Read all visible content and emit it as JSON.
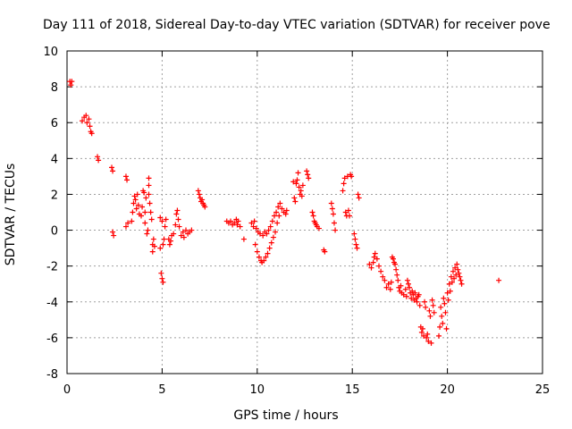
{
  "chart_data": {
    "type": "scatter",
    "title": "Day 111 of 2018, Sidereal Day-to-day VTEC variation (SDTVAR) for receiver pove",
    "xlabel": "GPS time / hours",
    "ylabel": "SDTVAR / TECUs",
    "xlim": [
      0,
      25
    ],
    "ylim": [
      -8,
      10
    ],
    "xticks": [
      0,
      5,
      10,
      15,
      20,
      25
    ],
    "yticks": [
      -8,
      -6,
      -4,
      -2,
      0,
      2,
      4,
      6,
      8,
      10
    ],
    "grid": true,
    "marker": "+",
    "color": "#ff0000",
    "series": [
      {
        "name": "SDTVAR",
        "points": [
          [
            0.15,
            8.3
          ],
          [
            0.2,
            8.1
          ],
          [
            0.25,
            8.3
          ],
          [
            0.8,
            6.1
          ],
          [
            0.9,
            6.3
          ],
          [
            1.0,
            6.4
          ],
          [
            1.05,
            6.0
          ],
          [
            1.15,
            6.2
          ],
          [
            1.2,
            5.8
          ],
          [
            1.25,
            5.5
          ],
          [
            1.3,
            5.4
          ],
          [
            1.6,
            4.1
          ],
          [
            1.65,
            3.9
          ],
          [
            2.35,
            3.5
          ],
          [
            2.4,
            3.3
          ],
          [
            2.4,
            -0.1
          ],
          [
            2.45,
            -0.3
          ],
          [
            3.1,
            3.0
          ],
          [
            3.15,
            2.8
          ],
          [
            3.1,
            0.2
          ],
          [
            3.2,
            0.4
          ],
          [
            3.4,
            0.5
          ],
          [
            3.45,
            1.0
          ],
          [
            3.5,
            1.5
          ],
          [
            3.55,
            1.9
          ],
          [
            3.6,
            1.7
          ],
          [
            3.65,
            1.2
          ],
          [
            3.7,
            2.0
          ],
          [
            3.75,
            1.4
          ],
          [
            3.8,
            0.9
          ],
          [
            3.9,
            0.8
          ],
          [
            3.95,
            1.3
          ],
          [
            4.0,
            2.2
          ],
          [
            4.05,
            2.1
          ],
          [
            4.1,
            1.0
          ],
          [
            4.1,
            0.4
          ],
          [
            4.15,
            1.8
          ],
          [
            4.2,
            -0.2
          ],
          [
            4.25,
            0.0
          ],
          [
            4.3,
            2.9
          ],
          [
            4.3,
            2.5
          ],
          [
            4.3,
            2.0
          ],
          [
            4.35,
            1.5
          ],
          [
            4.4,
            1.0
          ],
          [
            4.45,
            0.6
          ],
          [
            4.5,
            -0.8
          ],
          [
            4.5,
            -1.2
          ],
          [
            4.55,
            -0.5
          ],
          [
            4.6,
            -0.9
          ],
          [
            4.9,
            -1.0
          ],
          [
            4.95,
            -2.4
          ],
          [
            5.0,
            -2.7
          ],
          [
            5.05,
            -2.9
          ],
          [
            4.9,
            0.7
          ],
          [
            5.0,
            0.5
          ],
          [
            5.05,
            -0.8
          ],
          [
            5.1,
            -0.5
          ],
          [
            5.15,
            0.2
          ],
          [
            5.2,
            0.6
          ],
          [
            5.35,
            -0.5
          ],
          [
            5.4,
            -0.8
          ],
          [
            5.45,
            -0.6
          ],
          [
            5.5,
            -0.3
          ],
          [
            5.6,
            -0.2
          ],
          [
            5.7,
            0.3
          ],
          [
            5.75,
            0.9
          ],
          [
            5.8,
            1.1
          ],
          [
            5.85,
            0.6
          ],
          [
            5.9,
            0.2
          ],
          [
            6.0,
            -0.3
          ],
          [
            6.1,
            -0.1
          ],
          [
            6.15,
            -0.4
          ],
          [
            6.25,
            0.0
          ],
          [
            6.35,
            -0.2
          ],
          [
            6.45,
            -0.1
          ],
          [
            6.55,
            0.0
          ],
          [
            6.9,
            2.2
          ],
          [
            6.95,
            2.0
          ],
          [
            7.0,
            1.8
          ],
          [
            7.05,
            1.6
          ],
          [
            7.1,
            1.7
          ],
          [
            7.15,
            1.5
          ],
          [
            7.2,
            1.4
          ],
          [
            7.25,
            1.3
          ],
          [
            8.4,
            0.5
          ],
          [
            8.5,
            0.4
          ],
          [
            8.6,
            0.5
          ],
          [
            8.7,
            0.3
          ],
          [
            8.8,
            0.4
          ],
          [
            8.9,
            0.6
          ],
          [
            8.95,
            0.3
          ],
          [
            9.0,
            0.5
          ],
          [
            9.1,
            0.2
          ],
          [
            9.3,
            -0.5
          ],
          [
            9.7,
            0.4
          ],
          [
            9.8,
            0.2
          ],
          [
            9.85,
            0.5
          ],
          [
            9.9,
            -0.8
          ],
          [
            9.95,
            0.1
          ],
          [
            10.0,
            -1.2
          ],
          [
            10.05,
            -0.1
          ],
          [
            10.1,
            -1.5
          ],
          [
            10.15,
            -0.2
          ],
          [
            10.2,
            -1.7
          ],
          [
            10.25,
            -1.8
          ],
          [
            10.3,
            -0.3
          ],
          [
            10.35,
            -1.7
          ],
          [
            10.4,
            -0.1
          ],
          [
            10.45,
            -1.5
          ],
          [
            10.5,
            -0.2
          ],
          [
            10.55,
            -1.3
          ],
          [
            10.6,
            0.0
          ],
          [
            10.65,
            -1.0
          ],
          [
            10.7,
            0.2
          ],
          [
            10.75,
            -0.7
          ],
          [
            10.8,
            0.5
          ],
          [
            10.85,
            -0.4
          ],
          [
            10.9,
            0.8
          ],
          [
            10.95,
            -0.1
          ],
          [
            11.0,
            1.0
          ],
          [
            11.05,
            0.4
          ],
          [
            11.1,
            1.3
          ],
          [
            11.15,
            0.8
          ],
          [
            11.2,
            1.5
          ],
          [
            11.3,
            1.2
          ],
          [
            11.4,
            1.0
          ],
          [
            11.5,
            0.9
          ],
          [
            11.55,
            1.1
          ],
          [
            11.9,
            2.7
          ],
          [
            11.95,
            1.8
          ],
          [
            12.0,
            1.6
          ],
          [
            12.05,
            2.6
          ],
          [
            12.1,
            2.8
          ],
          [
            12.15,
            3.2
          ],
          [
            12.2,
            2.4
          ],
          [
            12.25,
            2.0
          ],
          [
            12.3,
            2.2
          ],
          [
            12.35,
            1.9
          ],
          [
            12.4,
            2.5
          ],
          [
            12.6,
            3.3
          ],
          [
            12.65,
            3.1
          ],
          [
            12.7,
            2.9
          ],
          [
            12.9,
            1.0
          ],
          [
            12.95,
            0.8
          ],
          [
            13.0,
            0.5
          ],
          [
            13.05,
            0.4
          ],
          [
            13.1,
            0.3
          ],
          [
            13.15,
            0.2
          ],
          [
            13.25,
            0.1
          ],
          [
            13.5,
            -1.1
          ],
          [
            13.55,
            -1.2
          ],
          [
            13.9,
            1.5
          ],
          [
            13.95,
            1.2
          ],
          [
            14.0,
            0.9
          ],
          [
            14.05,
            0.4
          ],
          [
            14.1,
            0.0
          ],
          [
            14.5,
            2.2
          ],
          [
            14.55,
            2.6
          ],
          [
            14.6,
            2.9
          ],
          [
            14.65,
            1.0
          ],
          [
            14.7,
            0.8
          ],
          [
            14.75,
            3.0
          ],
          [
            14.8,
            1.1
          ],
          [
            14.85,
            0.8
          ],
          [
            14.9,
            3.1
          ],
          [
            14.95,
            3.0
          ],
          [
            15.1,
            -0.2
          ],
          [
            15.15,
            -0.5
          ],
          [
            15.2,
            -0.8
          ],
          [
            15.25,
            -1.0
          ],
          [
            15.3,
            2.0
          ],
          [
            15.35,
            1.8
          ],
          [
            15.9,
            -1.9
          ],
          [
            16.0,
            -2.1
          ],
          [
            16.1,
            -1.8
          ],
          [
            16.15,
            -1.5
          ],
          [
            16.2,
            -1.3
          ],
          [
            16.3,
            -1.6
          ],
          [
            16.4,
            -2.0
          ],
          [
            16.5,
            -2.3
          ],
          [
            16.6,
            -2.6
          ],
          [
            16.7,
            -2.8
          ],
          [
            16.8,
            -3.2
          ],
          [
            16.9,
            -3.0
          ],
          [
            17.0,
            -3.3
          ],
          [
            17.05,
            -2.9
          ],
          [
            17.1,
            -1.5
          ],
          [
            17.15,
            -1.6
          ],
          [
            17.2,
            -1.8
          ],
          [
            17.25,
            -1.9
          ],
          [
            17.3,
            -2.2
          ],
          [
            17.35,
            -2.5
          ],
          [
            17.4,
            -2.8
          ],
          [
            17.45,
            -3.2
          ],
          [
            17.5,
            -3.4
          ],
          [
            17.55,
            -3.1
          ],
          [
            17.6,
            -3.5
          ],
          [
            17.7,
            -3.6
          ],
          [
            17.8,
            -3.3
          ],
          [
            17.85,
            -3.7
          ],
          [
            17.9,
            -2.8
          ],
          [
            17.95,
            -3.0
          ],
          [
            18.0,
            -3.2
          ],
          [
            18.05,
            -3.5
          ],
          [
            18.1,
            -3.8
          ],
          [
            18.15,
            -3.4
          ],
          [
            18.2,
            -3.6
          ],
          [
            18.25,
            -3.9
          ],
          [
            18.3,
            -3.5
          ],
          [
            18.35,
            -3.8
          ],
          [
            18.4,
            -4.0
          ],
          [
            18.45,
            -3.7
          ],
          [
            18.5,
            -3.6
          ],
          [
            18.55,
            -4.2
          ],
          [
            18.6,
            -5.4
          ],
          [
            18.65,
            -5.7
          ],
          [
            18.7,
            -5.5
          ],
          [
            18.75,
            -5.9
          ],
          [
            18.8,
            -4.0
          ],
          [
            18.85,
            -4.3
          ],
          [
            18.9,
            -6.0
          ],
          [
            18.95,
            -5.8
          ],
          [
            19.0,
            -6.2
          ],
          [
            19.05,
            -4.5
          ],
          [
            19.1,
            -4.8
          ],
          [
            19.15,
            -6.3
          ],
          [
            19.2,
            -3.9
          ],
          [
            19.25,
            -4.2
          ],
          [
            19.3,
            -4.6
          ],
          [
            19.55,
            -5.9
          ],
          [
            19.6,
            -5.4
          ],
          [
            19.65,
            -4.3
          ],
          [
            19.7,
            -4.8
          ],
          [
            19.75,
            -5.2
          ],
          [
            19.8,
            -3.8
          ],
          [
            19.85,
            -4.1
          ],
          [
            19.9,
            -4.6
          ],
          [
            19.95,
            -5.5
          ],
          [
            20.0,
            -3.5
          ],
          [
            20.05,
            -3.9
          ],
          [
            20.1,
            -3.0
          ],
          [
            20.15,
            -3.4
          ],
          [
            20.2,
            -2.6
          ],
          [
            20.25,
            -2.9
          ],
          [
            20.3,
            -2.3
          ],
          [
            20.35,
            -2.7
          ],
          [
            20.4,
            -2.1
          ],
          [
            20.45,
            -2.5
          ],
          [
            20.5,
            -1.9
          ],
          [
            20.55,
            -2.2
          ],
          [
            20.6,
            -2.4
          ],
          [
            20.65,
            -2.6
          ],
          [
            20.7,
            -2.8
          ],
          [
            20.75,
            -3.0
          ],
          [
            22.7,
            -2.8
          ]
        ]
      }
    ]
  }
}
